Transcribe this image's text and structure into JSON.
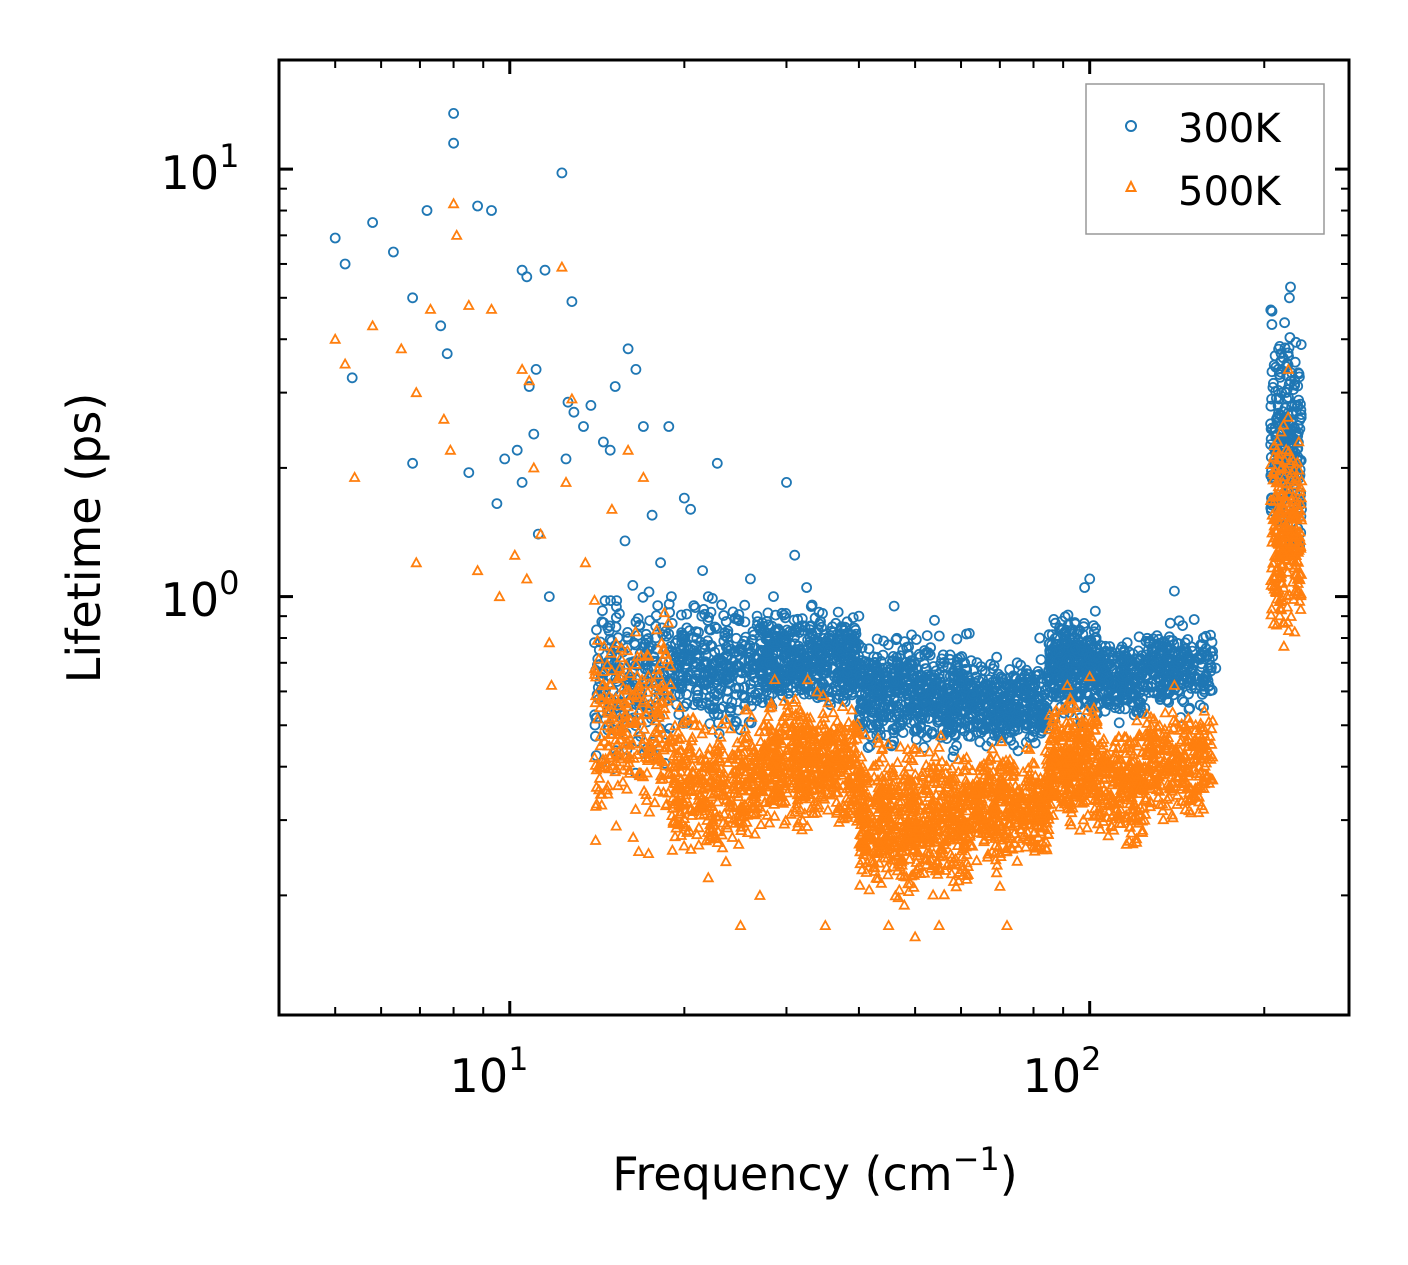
{
  "chart_data": {
    "type": "scatter",
    "xscale": "log",
    "yscale": "log",
    "xlim": [
      4.0,
      280.0
    ],
    "ylim": [
      0.105,
      18.0
    ],
    "xlabel": "Frequency (cm",
    "xlabel_exp": "−1",
    "xlabel_close": ")",
    "ylabel": "Lifetime (ps)",
    "x_ticks": [
      {
        "base": "10",
        "exp": "1",
        "value": 10
      },
      {
        "base": "10",
        "exp": "2",
        "value": 100
      }
    ],
    "y_ticks": [
      {
        "base": "10",
        "exp": "0",
        "value": 1
      },
      {
        "base": "10",
        "exp": "1",
        "value": 10
      }
    ],
    "legend_position": "top-right",
    "series": [
      {
        "name": "300K",
        "color": "#1f77b4",
        "marker": "circle",
        "points": [
          [
            5.0,
            6.9
          ],
          [
            5.2,
            6.0
          ],
          [
            5.35,
            3.25
          ],
          [
            5.8,
            7.5
          ],
          [
            6.3,
            6.4
          ],
          [
            6.8,
            5.0
          ],
          [
            6.8,
            2.05
          ],
          [
            7.2,
            8.0
          ],
          [
            7.6,
            4.3
          ],
          [
            7.8,
            3.7
          ],
          [
            8.0,
            13.5
          ],
          [
            8.0,
            11.5
          ],
          [
            8.5,
            1.95
          ],
          [
            8.8,
            8.2
          ],
          [
            9.3,
            8.0
          ],
          [
            9.5,
            1.65
          ],
          [
            9.8,
            2.1
          ],
          [
            10.3,
            2.2
          ],
          [
            10.5,
            1.85
          ],
          [
            10.5,
            5.8
          ],
          [
            10.7,
            5.6
          ],
          [
            10.8,
            3.1
          ],
          [
            11.0,
            2.4
          ],
          [
            11.1,
            3.4
          ],
          [
            11.2,
            1.4
          ],
          [
            11.5,
            5.8
          ],
          [
            11.7,
            1.0
          ],
          [
            12.3,
            9.8
          ],
          [
            12.5,
            2.1
          ],
          [
            12.6,
            2.85
          ],
          [
            12.8,
            4.9
          ],
          [
            12.9,
            2.7
          ],
          [
            13.4,
            2.5
          ],
          [
            13.8,
            2.8
          ],
          [
            14.0,
            0.78
          ],
          [
            14.5,
            2.3
          ],
          [
            14.9,
            2.2
          ],
          [
            15.2,
            3.1
          ],
          [
            15.8,
            1.35
          ],
          [
            16.0,
            3.8
          ],
          [
            16.5,
            3.4
          ],
          [
            17.0,
            2.5
          ],
          [
            17.6,
            1.55
          ],
          [
            18.2,
            1.2
          ],
          [
            18.8,
            2.5
          ],
          [
            19.0,
            1.0
          ],
          [
            20.0,
            1.7
          ],
          [
            20.5,
            1.6
          ],
          [
            21.5,
            1.15
          ],
          [
            22.0,
            1.0
          ],
          [
            22.8,
            2.05
          ],
          [
            26.0,
            1.1
          ],
          [
            28.5,
            1.0
          ],
          [
            30.0,
            1.85
          ],
          [
            31.0,
            1.25
          ],
          [
            32.5,
            1.05
          ],
          [
            36.0,
            0.85
          ],
          [
            40.0,
            0.9
          ],
          [
            46.0,
            0.95
          ],
          [
            54.0,
            0.88
          ],
          [
            62.0,
            0.82
          ],
          [
            75.0,
            0.7
          ],
          [
            82.0,
            0.8
          ],
          [
            100.0,
            1.1
          ],
          [
            98.0,
            1.05
          ],
          [
            140.0,
            1.03
          ],
          [
            165.0,
            0.68
          ],
          [
            222.0,
            5.3
          ],
          [
            221.0,
            5.0
          ]
        ],
        "clusters": [
          {
            "x": [
              14.0,
              19.0
            ],
            "y": [
              0.35,
              1.2
            ],
            "n": 230
          },
          {
            "x": [
              19.0,
              27.0
            ],
            "y": [
              0.45,
              1.05
            ],
            "n": 320
          },
          {
            "x": [
              27.0,
              40.0
            ],
            "y": [
              0.5,
              1.0
            ],
            "n": 520
          },
          {
            "x": [
              40.0,
              62.0
            ],
            "y": [
              0.4,
              0.88
            ],
            "n": 560
          },
          {
            "x": [
              62.0,
              85.0
            ],
            "y": [
              0.42,
              0.75
            ],
            "n": 360
          },
          {
            "x": [
              85.0,
              103.0
            ],
            "y": [
              0.48,
              1.0
            ],
            "n": 320
          },
          {
            "x": [
              103.0,
              125.0
            ],
            "y": [
              0.48,
              0.85
            ],
            "n": 230
          },
          {
            "x": [
              125.0,
              163.0
            ],
            "y": [
              0.5,
              0.92
            ],
            "n": 260
          },
          {
            "x": [
              205.0,
              232.0
            ],
            "y": [
              1.05,
              5.2
            ],
            "n": 260
          }
        ]
      },
      {
        "name": "500K",
        "color": "#ff7f0e",
        "marker": "triangle",
        "points": [
          [
            5.0,
            4.0
          ],
          [
            5.2,
            3.5
          ],
          [
            5.4,
            1.9
          ],
          [
            5.8,
            4.3
          ],
          [
            6.5,
            3.8
          ],
          [
            6.9,
            3.0
          ],
          [
            6.9,
            1.2
          ],
          [
            7.3,
            4.7
          ],
          [
            7.7,
            2.6
          ],
          [
            7.9,
            2.2
          ],
          [
            8.0,
            8.3
          ],
          [
            8.1,
            7.0
          ],
          [
            8.5,
            4.8
          ],
          [
            8.8,
            1.15
          ],
          [
            9.3,
            4.7
          ],
          [
            9.6,
            1.0
          ],
          [
            10.2,
            1.25
          ],
          [
            10.5,
            3.4
          ],
          [
            10.7,
            1.1
          ],
          [
            10.8,
            3.2
          ],
          [
            11.0,
            2.0
          ],
          [
            11.3,
            1.4
          ],
          [
            11.7,
            0.78
          ],
          [
            11.8,
            0.62
          ],
          [
            12.3,
            5.9
          ],
          [
            12.5,
            1.85
          ],
          [
            12.8,
            2.9
          ],
          [
            13.5,
            1.2
          ],
          [
            14.0,
            0.98
          ],
          [
            14.3,
            0.55
          ],
          [
            15.0,
            1.6
          ],
          [
            15.5,
            0.65
          ],
          [
            16.0,
            2.2
          ],
          [
            17.0,
            1.9
          ],
          [
            18.0,
            0.48
          ],
          [
            20.0,
            0.33
          ],
          [
            22.0,
            0.22
          ],
          [
            25.0,
            0.17
          ],
          [
            27.0,
            0.2
          ],
          [
            35.0,
            0.17
          ],
          [
            45.0,
            0.17
          ],
          [
            50.0,
            0.16
          ],
          [
            55.0,
            0.17
          ],
          [
            70.0,
            0.21
          ],
          [
            72.0,
            0.17
          ],
          [
            100.0,
            0.65
          ],
          [
            140.0,
            0.62
          ],
          [
            160.0,
            0.38
          ],
          [
            220.0,
            3.4
          ]
        ],
        "clusters": [
          {
            "x": [
              14.0,
              19.0
            ],
            "y": [
              0.24,
              1.0
            ],
            "n": 260
          },
          {
            "x": [
              19.0,
              27.0
            ],
            "y": [
              0.22,
              0.6
            ],
            "n": 380
          },
          {
            "x": [
              27.0,
              40.0
            ],
            "y": [
              0.26,
              0.65
            ],
            "n": 560
          },
          {
            "x": [
              40.0,
              62.0
            ],
            "y": [
              0.18,
              0.5
            ],
            "n": 700
          },
          {
            "x": [
              62.0,
              85.0
            ],
            "y": [
              0.22,
              0.48
            ],
            "n": 420
          },
          {
            "x": [
              85.0,
              103.0
            ],
            "y": [
              0.26,
              0.65
            ],
            "n": 340
          },
          {
            "x": [
              103.0,
              125.0
            ],
            "y": [
              0.24,
              0.55
            ],
            "n": 240
          },
          {
            "x": [
              125.0,
              163.0
            ],
            "y": [
              0.28,
              0.6
            ],
            "n": 270
          },
          {
            "x": [
              205.0,
              232.0
            ],
            "y": [
              0.65,
              3.0
            ],
            "n": 260
          }
        ]
      }
    ]
  }
}
